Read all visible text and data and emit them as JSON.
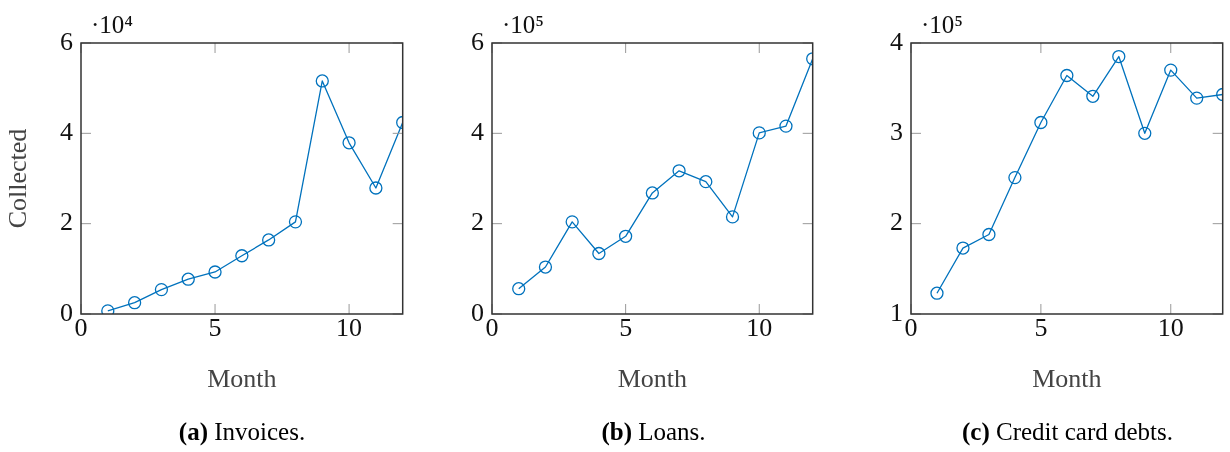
{
  "chart_data": [
    {
      "type": "line",
      "title": "(a) Invoices.",
      "xlabel": "Month",
      "ylabel": "Collected",
      "annotations": [
        "·10⁴"
      ],
      "x": [
        1,
        2,
        3,
        4,
        5,
        6,
        7,
        8,
        9,
        10,
        11,
        12
      ],
      "xlim": [
        0,
        12
      ],
      "xticks": [
        0,
        5,
        10
      ],
      "ylim": [
        0,
        6
      ],
      "yticks": [
        0,
        2,
        4,
        6
      ],
      "marker": "circle",
      "grid": false,
      "series": [
        {
          "color": "#0072bd",
          "values": [
            0.07,
            0.25,
            0.54,
            0.77,
            0.93,
            1.29,
            1.64,
            2.04,
            5.16,
            3.79,
            2.79,
            4.24
          ]
        }
      ]
    },
    {
      "type": "line",
      "title": "(b) Loans.",
      "xlabel": "Month",
      "annotations": [
        "·10⁵"
      ],
      "x": [
        1,
        2,
        3,
        4,
        5,
        6,
        7,
        8,
        9,
        10,
        11,
        12
      ],
      "xlim": [
        0,
        12
      ],
      "xticks": [
        0,
        5,
        10
      ],
      "ylim": [
        0,
        6
      ],
      "yticks": [
        0,
        2,
        4,
        6
      ],
      "marker": "circle",
      "grid": false,
      "series": [
        {
          "color": "#0072bd",
          "values": [
            0.56,
            1.04,
            2.04,
            1.34,
            1.72,
            2.68,
            3.17,
            2.93,
            2.15,
            4.01,
            4.16,
            5.65
          ]
        }
      ]
    },
    {
      "type": "line",
      "title": "(c) Credit card debts.",
      "xlabel": "Month",
      "annotations": [
        "·10⁵"
      ],
      "x": [
        1,
        2,
        3,
        4,
        5,
        6,
        7,
        8,
        9,
        10,
        11,
        12
      ],
      "xlim": [
        0,
        12
      ],
      "xticks": [
        0,
        5,
        10
      ],
      "ylim": [
        1,
        4
      ],
      "yticks": [
        1,
        2,
        3,
        4
      ],
      "marker": "circle",
      "grid": false,
      "series": [
        {
          "color": "#0072bd",
          "values": [
            1.23,
            1.73,
            1.88,
            2.51,
            3.12,
            3.64,
            3.41,
            3.85,
            3.0,
            3.7,
            3.39,
            3.43
          ]
        }
      ]
    }
  ]
}
